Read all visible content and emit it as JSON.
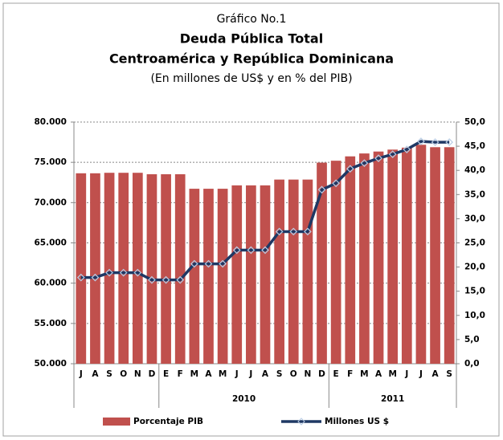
{
  "chart_data": {
    "type": "bar_line",
    "title": "Gráfico No.1",
    "subtitle": [
      "Deuda Pública Total",
      "Centroamérica y República Dominicana"
    ],
    "note": "(En millones de US$ y en % del PIB)",
    "categories": [
      "J",
      "A",
      "S",
      "O",
      "N",
      "D",
      "E",
      "F",
      "M",
      "A",
      "M",
      "J",
      "J",
      "A",
      "S",
      "O",
      "N",
      "D",
      "E",
      "F",
      "M",
      "A",
      "M",
      "J",
      "J",
      "A",
      "S"
    ],
    "x_groups": [
      {
        "label": null,
        "count": 6
      },
      {
        "label": "2010",
        "count": 12
      },
      {
        "label": "2011",
        "count": 9
      }
    ],
    "series": [
      {
        "name": "Porcentaje PIB",
        "type": "bar",
        "axis": "y2",
        "color": "#c0504d",
        "values": [
          39.4,
          39.4,
          39.5,
          39.5,
          39.5,
          39.2,
          39.2,
          39.2,
          36.2,
          36.2,
          36.2,
          36.9,
          36.9,
          36.9,
          38.1,
          38.1,
          38.1,
          41.6,
          42.0,
          42.9,
          43.5,
          43.9,
          44.3,
          44.7,
          45.3,
          44.8,
          44.8
        ]
      },
      {
        "name": "Millones US $",
        "type": "line",
        "axis": "y",
        "color": "#1f3864",
        "values": [
          60700,
          60700,
          61300,
          61300,
          61300,
          60400,
          60400,
          60400,
          62400,
          62400,
          62400,
          64100,
          64100,
          64100,
          66400,
          66400,
          66400,
          71600,
          72400,
          74200,
          74900,
          75500,
          76000,
          76600,
          77600,
          77500,
          77500
        ]
      }
    ],
    "ylim": [
      50000,
      80000
    ],
    "yticks": [
      {
        "value": 50000,
        "label": "50.000"
      },
      {
        "value": 55000,
        "label": "55.000"
      },
      {
        "value": 60000,
        "label": "60.000"
      },
      {
        "value": 65000,
        "label": "65.000"
      },
      {
        "value": 70000,
        "label": "70.000"
      },
      {
        "value": 75000,
        "label": "75.000"
      },
      {
        "value": 80000,
        "label": "80.000"
      }
    ],
    "y2lim": [
      0,
      50
    ],
    "y2ticks": [
      {
        "value": 0,
        "label": "0,0"
      },
      {
        "value": 5,
        "label": "5,0"
      },
      {
        "value": 10,
        "label": "10,0"
      },
      {
        "value": 15,
        "label": "15,0"
      },
      {
        "value": 20,
        "label": "20,0"
      },
      {
        "value": 25,
        "label": "25,0"
      },
      {
        "value": 30,
        "label": "30,0"
      },
      {
        "value": 35,
        "label": "35,0"
      },
      {
        "value": 40,
        "label": "40,0"
      },
      {
        "value": 45,
        "label": "45,0"
      },
      {
        "value": 50,
        "label": "50,0"
      }
    ],
    "grid": true,
    "legend": "bottom"
  }
}
